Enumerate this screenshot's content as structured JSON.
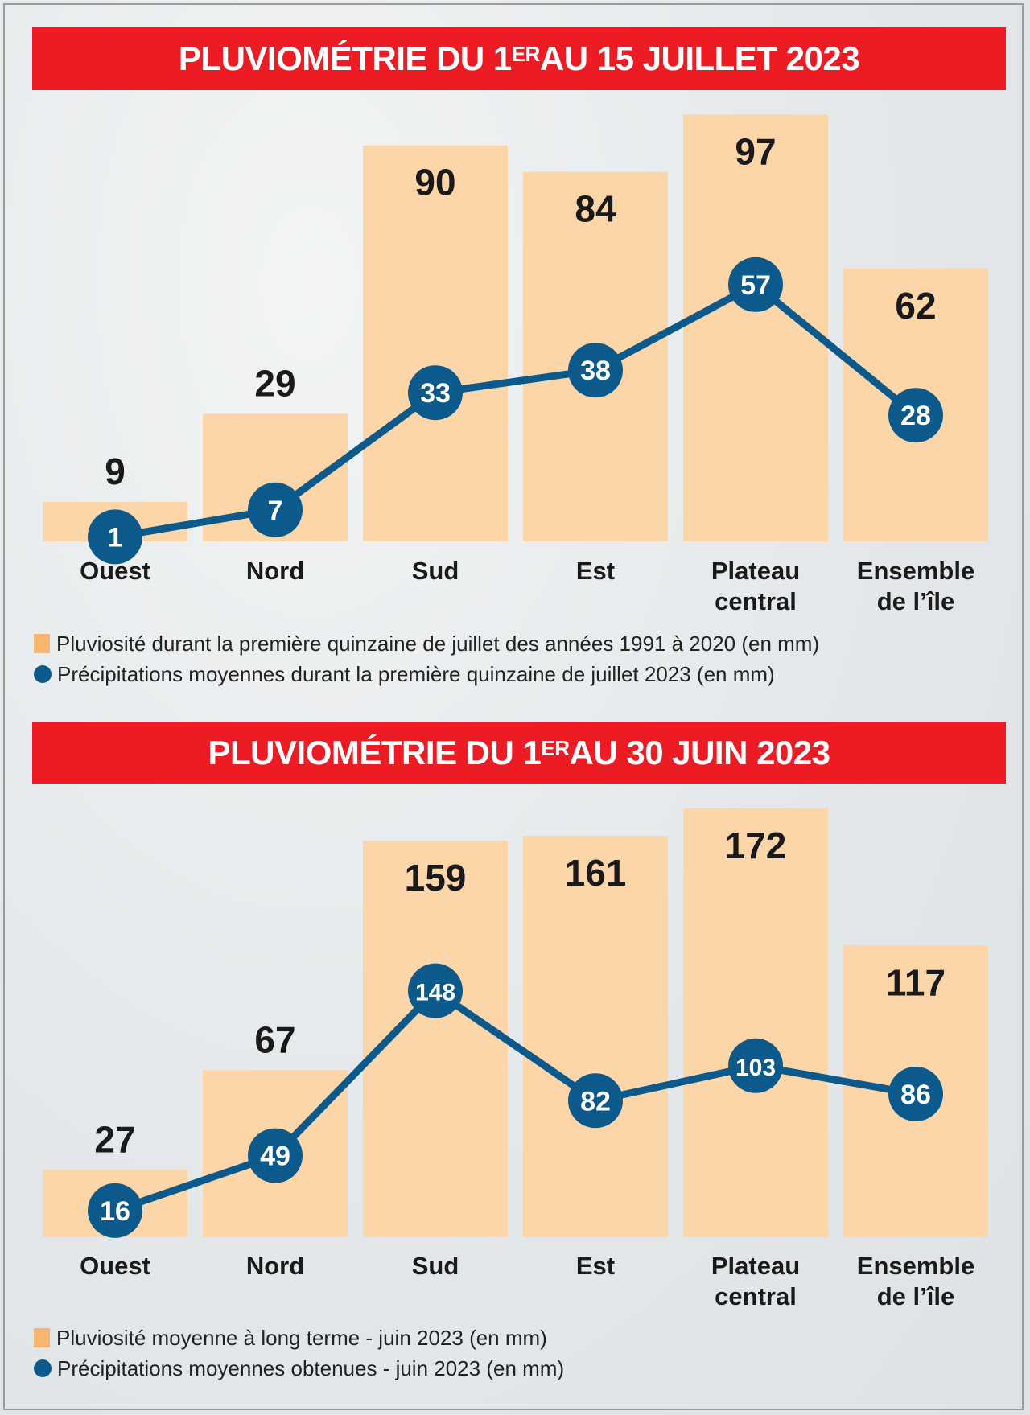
{
  "colors": {
    "title_bg": "#ed1c24",
    "bar": "#fcd5a8",
    "legend_bar": "#f7b56f",
    "line": "#0b5a8b"
  },
  "chart_data": [
    {
      "type": "bar+line",
      "title": "PLUVIOMÉTRIE DU 1",
      "title_sup": "ER",
      "title_rest": " AU 15 JUILLET 2023",
      "categories": [
        "Ouest",
        "Nord",
        "Sud",
        "Est",
        "Plateau central",
        "Ensemble de l’île"
      ],
      "category_lines": [
        [
          "Ouest"
        ],
        [
          "Nord"
        ],
        [
          "Sud"
        ],
        [
          "Est"
        ],
        [
          "Plateau",
          "central"
        ],
        [
          "Ensemble",
          "de l’île"
        ]
      ],
      "series": [
        {
          "name": "Pluviosité durant la première quinzaine de juillet des années 1991 à 2020 (en mm)",
          "type": "bar",
          "values": [
            9,
            29,
            90,
            84,
            97,
            62
          ]
        },
        {
          "name": "Précipitations moyennes durant la première quinzaine de juillet 2023 (en mm)",
          "type": "line",
          "values": [
            1,
            7,
            33,
            38,
            57,
            28
          ]
        }
      ],
      "legend_position": "bottom-left",
      "grid": false
    },
    {
      "type": "bar+line",
      "title": "PLUVIOMÉTRIE DU 1",
      "title_sup": "ER",
      "title_rest": " AU 30 JUIN 2023",
      "categories": [
        "Ouest",
        "Nord",
        "Sud",
        "Est",
        "Plateau central",
        "Ensemble de l’île"
      ],
      "category_lines": [
        [
          "Ouest"
        ],
        [
          "Nord"
        ],
        [
          "Sud"
        ],
        [
          "Est"
        ],
        [
          "Plateau",
          "central"
        ],
        [
          "Ensemble",
          "de l’île"
        ]
      ],
      "series": [
        {
          "name": "Pluviosité moyenne à long terme - juin 2023 (en mm)",
          "type": "bar",
          "values": [
            27,
            67,
            159,
            161,
            172,
            117
          ]
        },
        {
          "name": "Précipitations moyennes obtenues - juin 2023 (en mm)",
          "type": "line",
          "values": [
            16,
            49,
            148,
            82,
            103,
            86
          ]
        }
      ],
      "legend_position": "bottom-left",
      "grid": false
    }
  ]
}
